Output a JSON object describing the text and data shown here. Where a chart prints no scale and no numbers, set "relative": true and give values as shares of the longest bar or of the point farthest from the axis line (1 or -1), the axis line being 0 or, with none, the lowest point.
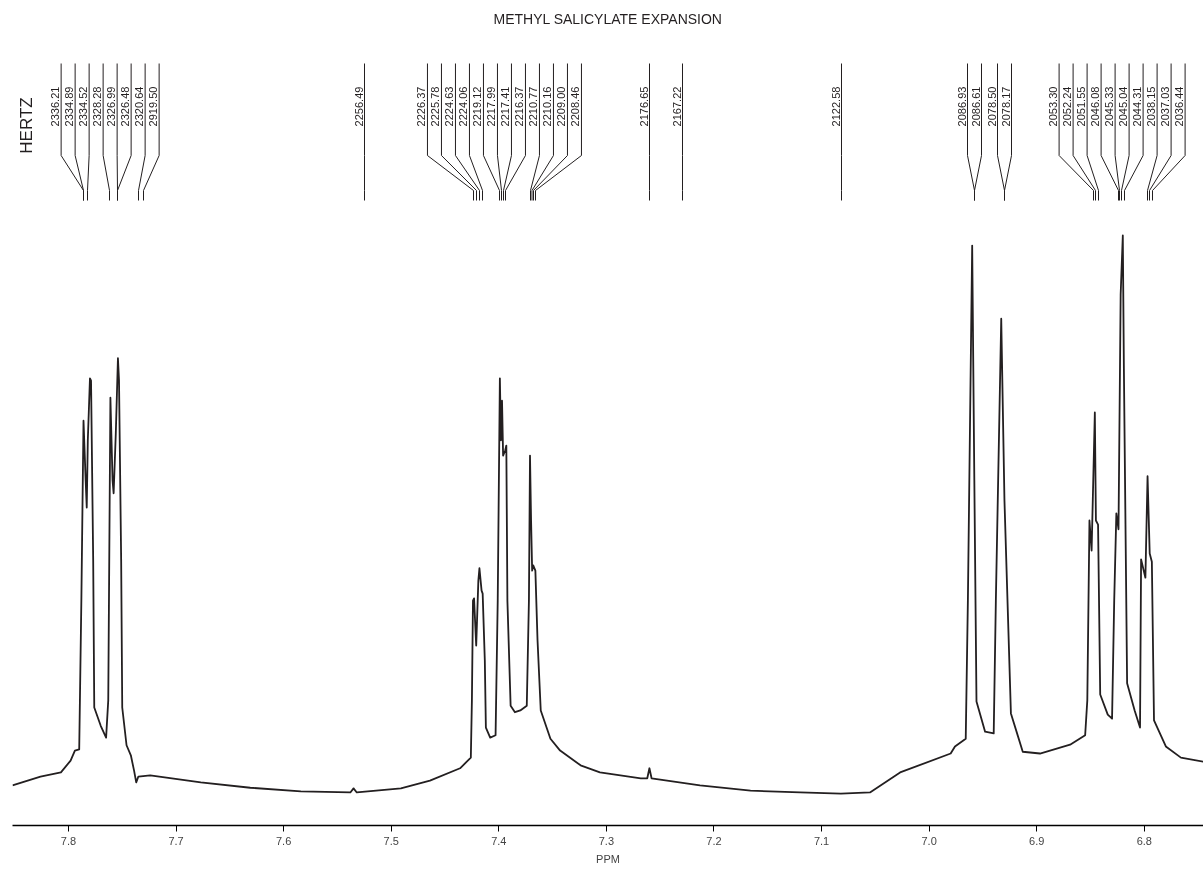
{
  "chart_data": {
    "type": "line",
    "title": "METHYL SALICYLATE EXPANSION",
    "xlabel": "PPM",
    "relative": true,
    "x": [
      7.852,
      7.826,
      7.807,
      7.798,
      7.794,
      7.79,
      7.788,
      7.786,
      7.784,
      7.783,
      7.782,
      7.78,
      7.779,
      7.777,
      7.776,
      7.77,
      7.765,
      7.763,
      7.761,
      7.759,
      7.758,
      7.756,
      7.754,
      7.753,
      7.751,
      7.75,
      7.746,
      7.742,
      7.739,
      7.737,
      7.735,
      7.724,
      7.677,
      7.631,
      7.584,
      7.538,
      7.535,
      7.532,
      7.491,
      7.464,
      7.436,
      7.426,
      7.425,
      7.424,
      7.423,
      7.421,
      7.419,
      7.418,
      7.416,
      7.415,
      7.413,
      7.412,
      7.408,
      7.403,
      7.401,
      7.399,
      7.398,
      7.397,
      7.396,
      7.394,
      7.393,
      7.392,
      7.389,
      7.385,
      7.38,
      7.374,
      7.372,
      7.371,
      7.37,
      7.369,
      7.368,
      7.366,
      7.364,
      7.361,
      7.352,
      7.343,
      7.324,
      7.306,
      7.268,
      7.262,
      7.26,
      7.258,
      7.213,
      7.166,
      7.12,
      7.082,
      7.055,
      7.027,
      6.98,
      6.976,
      6.966,
      6.964,
      6.96,
      6.958,
      6.956,
      6.948,
      6.94,
      6.938,
      6.933,
      6.93,
      6.924,
      6.913,
      6.897,
      6.869,
      6.855,
      6.853,
      6.851,
      6.849,
      6.846,
      6.845,
      6.843,
      6.841,
      6.834,
      6.83,
      6.828,
      6.826,
      6.824,
      6.822,
      6.82,
      6.819,
      6.816,
      6.809,
      6.804,
      6.803,
      6.799,
      6.797,
      6.795,
      6.793,
      6.791,
      6.78,
      6.766,
      6.745
    ],
    "series": [
      {
        "color": "#231f20",
        "values": [
          0.068,
          0.083,
          0.09,
          0.11,
          0.127,
          0.129,
          0.381,
          0.686,
          0.585,
          0.539,
          0.653,
          0.758,
          0.754,
          0.449,
          0.2,
          0.169,
          0.149,
          0.212,
          0.725,
          0.585,
          0.563,
          0.664,
          0.792,
          0.754,
          0.449,
          0.2,
          0.136,
          0.119,
          0.093,
          0.073,
          0.083,
          0.085,
          0.073,
          0.064,
          0.058,
          0.056,
          0.063,
          0.056,
          0.063,
          0.076,
          0.097,
          0.115,
          0.212,
          0.381,
          0.385,
          0.305,
          0.415,
          0.436,
          0.398,
          0.393,
          0.28,
          0.166,
          0.149,
          0.153,
          0.381,
          0.758,
          0.653,
          0.72,
          0.627,
          0.636,
          0.644,
          0.381,
          0.203,
          0.192,
          0.195,
          0.203,
          0.381,
          0.627,
          0.517,
          0.432,
          0.441,
          0.432,
          0.314,
          0.195,
          0.147,
          0.127,
          0.102,
          0.09,
          0.08,
          0.08,
          0.097,
          0.08,
          0.068,
          0.059,
          0.056,
          0.054,
          0.056,
          0.09,
          0.122,
          0.134,
          0.147,
          0.381,
          0.983,
          0.585,
          0.21,
          0.159,
          0.156,
          0.381,
          0.859,
          0.551,
          0.19,
          0.125,
          0.122,
          0.137,
          0.153,
          0.212,
          0.517,
          0.466,
          0.7,
          0.517,
          0.51,
          0.222,
          0.188,
          0.181,
          0.381,
          0.529,
          0.502,
          0.9,
          1,
          0.775,
          0.241,
          0.195,
          0.166,
          0.451,
          0.42,
          0.592,
          0.461,
          0.447,
          0.178,
          0.134,
          0.115,
          0.108
        ]
      }
    ],
    "xlim": [
      7.852,
      6.745
    ],
    "xticks": [
      7.8,
      7.7,
      7.6,
      7.5,
      7.4,
      7.3,
      7.2,
      7.1,
      {
        "value": 7.0,
        "label": "7.0"
      },
      6.9,
      6.8
    ],
    "annotations": [
      "HERTZ",
      "2336.21",
      "2334.89",
      "2334.52",
      "2328.28",
      "2326.99",
      "2326.48",
      "2320.64",
      "2919.50",
      "2256.49",
      "2226.37",
      "2225.78",
      "2224.63",
      "2224.06",
      "2219.12",
      "2217.99",
      "2217.41",
      "2216.37",
      "2210.77",
      "2210.16",
      "2209.00",
      "2208.46",
      "2176.65",
      "2167.22",
      "2122.58",
      "2086.93",
      "2086.61",
      "2078.50",
      "2078.17",
      "2053.30",
      "2052.24",
      "2051.55",
      "2046.08",
      "2045.33",
      "2045.04",
      "2044.31",
      "2038.15",
      "2037.03",
      "2036.44"
    ]
  }
}
